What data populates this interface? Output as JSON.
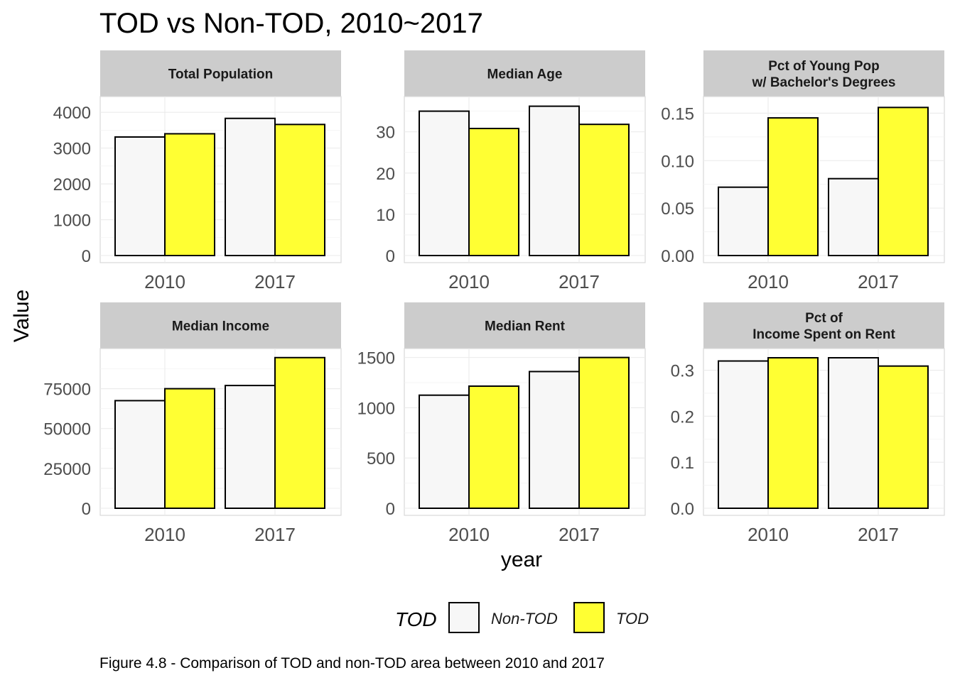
{
  "chart_data": {
    "type": "bar",
    "title": "TOD vs Non-TOD, 2010~2017",
    "xlabel": "year",
    "ylabel": "Value",
    "caption": "Figure 4.8 - Comparison of TOD and non-TOD area between 2010 and 2017",
    "legend": {
      "title": "TOD",
      "position": "bottom",
      "entries": [
        {
          "label": "Non-TOD",
          "color": "#f7f7f7"
        },
        {
          "label": "TOD",
          "color": "#ffff33"
        }
      ]
    },
    "categories": [
      "2010",
      "2017"
    ],
    "panels": [
      {
        "strip": [
          "Total Population"
        ],
        "ylim": [
          0,
          4400
        ],
        "ticks": [
          {
            "v": 0,
            "label": "0"
          },
          {
            "v": 1000,
            "label": "1000"
          },
          {
            "v": 2000,
            "label": "2000"
          },
          {
            "v": 3000,
            "label": "3000"
          },
          {
            "v": 4000,
            "label": "4000"
          }
        ],
        "series": [
          {
            "name": "Non-TOD",
            "values": [
              3310,
              3830
            ]
          },
          {
            "name": "TOD",
            "values": [
              3400,
              3660
            ]
          }
        ]
      },
      {
        "strip": [
          "Median Age"
        ],
        "ylim": [
          0,
          38.2
        ],
        "ticks": [
          {
            "v": 0,
            "label": "0"
          },
          {
            "v": 10,
            "label": "10"
          },
          {
            "v": 20,
            "label": "20"
          },
          {
            "v": 30,
            "label": "30"
          }
        ],
        "series": [
          {
            "name": "Non-TOD",
            "values": [
              35,
              36.2
            ]
          },
          {
            "name": "TOD",
            "values": [
              30.8,
              31.8
            ]
          }
        ]
      },
      {
        "strip": [
          "Pct of Young Pop",
          "w/ Bachelor's Degrees"
        ],
        "ylim": [
          0,
          0.166
        ],
        "ticks": [
          {
            "v": 0,
            "label": "0.00"
          },
          {
            "v": 0.05,
            "label": "0.05"
          },
          {
            "v": 0.1,
            "label": "0.10"
          },
          {
            "v": 0.15,
            "label": "0.15"
          }
        ],
        "series": [
          {
            "name": "Non-TOD",
            "values": [
              0.072,
              0.081
            ]
          },
          {
            "name": "TOD",
            "values": [
              0.145,
              0.156
            ]
          }
        ]
      },
      {
        "strip": [
          "Median Income"
        ],
        "ylim": [
          0,
          99300
        ],
        "ticks": [
          {
            "v": 0,
            "label": "0"
          },
          {
            "v": 25000,
            "label": "25000"
          },
          {
            "v": 50000,
            "label": "50000"
          },
          {
            "v": 75000,
            "label": "75000"
          }
        ],
        "series": [
          {
            "name": "Non-TOD",
            "values": [
              67500,
              77000
            ]
          },
          {
            "name": "TOD",
            "values": [
              75000,
              94500
            ]
          }
        ]
      },
      {
        "strip": [
          "Median Rent"
        ],
        "ylim": [
          0,
          1575
        ],
        "ticks": [
          {
            "v": 0,
            "label": "0"
          },
          {
            "v": 500,
            "label": "500"
          },
          {
            "v": 1000,
            "label": "1000"
          },
          {
            "v": 1500,
            "label": "1500"
          }
        ],
        "series": [
          {
            "name": "Non-TOD",
            "values": [
              1125,
              1360
            ]
          },
          {
            "name": "TOD",
            "values": [
              1215,
              1500
            ]
          }
        ]
      },
      {
        "strip": [
          "Pct of",
          "Income Spent on Rent"
        ],
        "ylim": [
          0,
          0.344
        ],
        "ticks": [
          {
            "v": 0,
            "label": "0.0"
          },
          {
            "v": 0.1,
            "label": "0.1"
          },
          {
            "v": 0.2,
            "label": "0.2"
          },
          {
            "v": 0.3,
            "label": "0.3"
          }
        ],
        "series": [
          {
            "name": "Non-TOD",
            "values": [
              0.32,
              0.327
            ]
          },
          {
            "name": "TOD",
            "values": [
              0.327,
              0.309
            ]
          }
        ]
      }
    ]
  }
}
